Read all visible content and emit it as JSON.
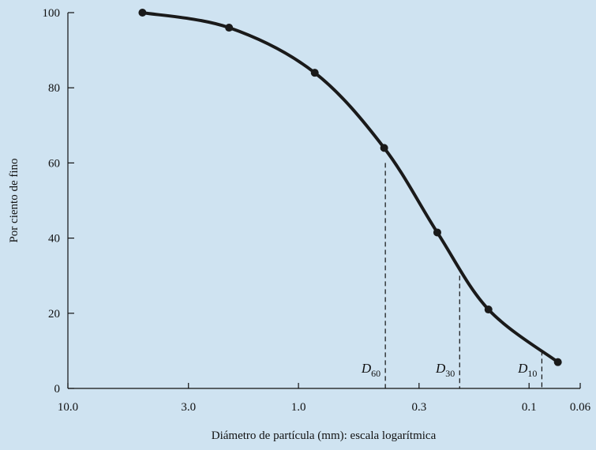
{
  "chart_data": {
    "type": "line",
    "xlabel": "Diámetro de partícula (mm): escala logarítmica",
    "ylabel": "Por ciento de fino",
    "x_scale": "log",
    "x_reversed": true,
    "xlim": [
      10.0,
      0.06
    ],
    "ylim": [
      0,
      100
    ],
    "x_ticks": [
      {
        "value": 10.0,
        "label": "10.0"
      },
      {
        "value": 3.0,
        "label": "3.0"
      },
      {
        "value": 1.0,
        "label": "1.0"
      },
      {
        "value": 0.3,
        "label": "0.3"
      },
      {
        "value": 0.1,
        "label": "0.1"
      },
      {
        "value": 0.06,
        "label": "0.06"
      }
    ],
    "y_ticks": [
      {
        "value": 0,
        "label": "0"
      },
      {
        "value": 20,
        "label": "20"
      },
      {
        "value": 40,
        "label": "40"
      },
      {
        "value": 60,
        "label": "60"
      },
      {
        "value": 80,
        "label": "80"
      },
      {
        "value": 100,
        "label": "100"
      }
    ],
    "series": [
      {
        "color": "#1a1a1a",
        "points": [
          {
            "x": 4.75,
            "y": 100
          },
          {
            "x": 2.0,
            "y": 96
          },
          {
            "x": 0.85,
            "y": 84
          },
          {
            "x": 0.425,
            "y": 64
          },
          {
            "x": 0.25,
            "y": 41.5
          },
          {
            "x": 0.15,
            "y": 21
          },
          {
            "x": 0.075,
            "y": 7
          }
        ]
      }
    ],
    "annotations": [
      {
        "name": "D60",
        "symbol": "D",
        "subscript": "60",
        "x": 0.42,
        "y": 60
      },
      {
        "name": "D30",
        "symbol": "D",
        "subscript": "30",
        "x": 0.2,
        "y": 30
      },
      {
        "name": "D10",
        "symbol": "D",
        "subscript": "10",
        "x": 0.088,
        "y": 10
      }
    ],
    "grid": false,
    "background": "#cfe3f1",
    "line_color": "#1a1a1a"
  }
}
